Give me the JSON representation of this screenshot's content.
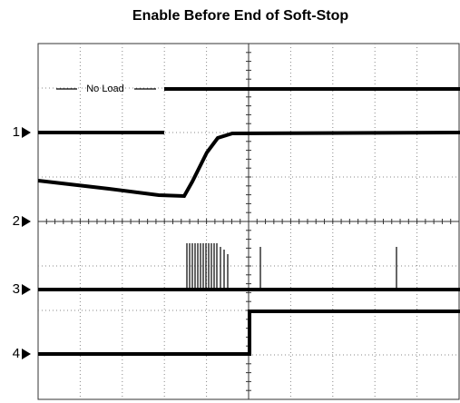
{
  "header": {
    "title": "Enable Before End of Soft-Stop"
  },
  "annotation": "No Load",
  "channels": [
    "1",
    "2",
    "3",
    "4"
  ]
}
